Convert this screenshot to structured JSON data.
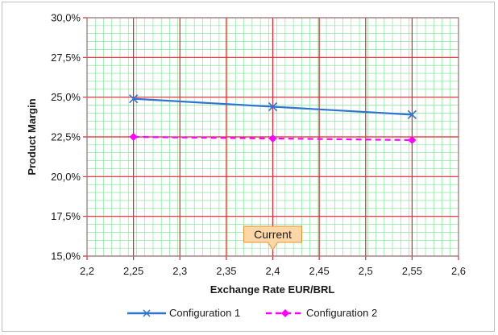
{
  "chart_data": {
    "type": "line",
    "xlabel": "Exchange Rate EUR/BRL",
    "ylabel": "Product Margin",
    "xlim": [
      2.2,
      2.6
    ],
    "ylim": [
      15.0,
      30.0
    ],
    "x_ticks": [
      "2,2",
      "2,25",
      "2,3",
      "2,35",
      "2,4",
      "2,45",
      "2,5",
      "2,55",
      "2,6"
    ],
    "y_ticks": [
      "15,0%",
      "17,5%",
      "20,0%",
      "22,5%",
      "25,0%",
      "27,5%",
      "30,0%"
    ],
    "x_tick_values": [
      2.2,
      2.25,
      2.3,
      2.35,
      2.4,
      2.45,
      2.5,
      2.55,
      2.6
    ],
    "y_tick_values": [
      15.0,
      17.5,
      20.0,
      22.5,
      25.0,
      27.5,
      30.0
    ],
    "series": [
      {
        "name": "Configuration 1",
        "x": [
          2.25,
          2.4,
          2.55
        ],
        "values": [
          24.9,
          24.4,
          23.9
        ],
        "color": "#2e75d1",
        "marker": "x-mark",
        "dash": "solid"
      },
      {
        "name": "Configuration 2",
        "x": [
          2.25,
          2.4,
          2.55
        ],
        "values": [
          22.5,
          22.4,
          22.3
        ],
        "color": "#ff00ff",
        "marker": "diamond",
        "dash": "dashed"
      }
    ],
    "annotation": {
      "text": "Current",
      "x": 2.4
    },
    "grid": true,
    "legend": "bottom"
  }
}
